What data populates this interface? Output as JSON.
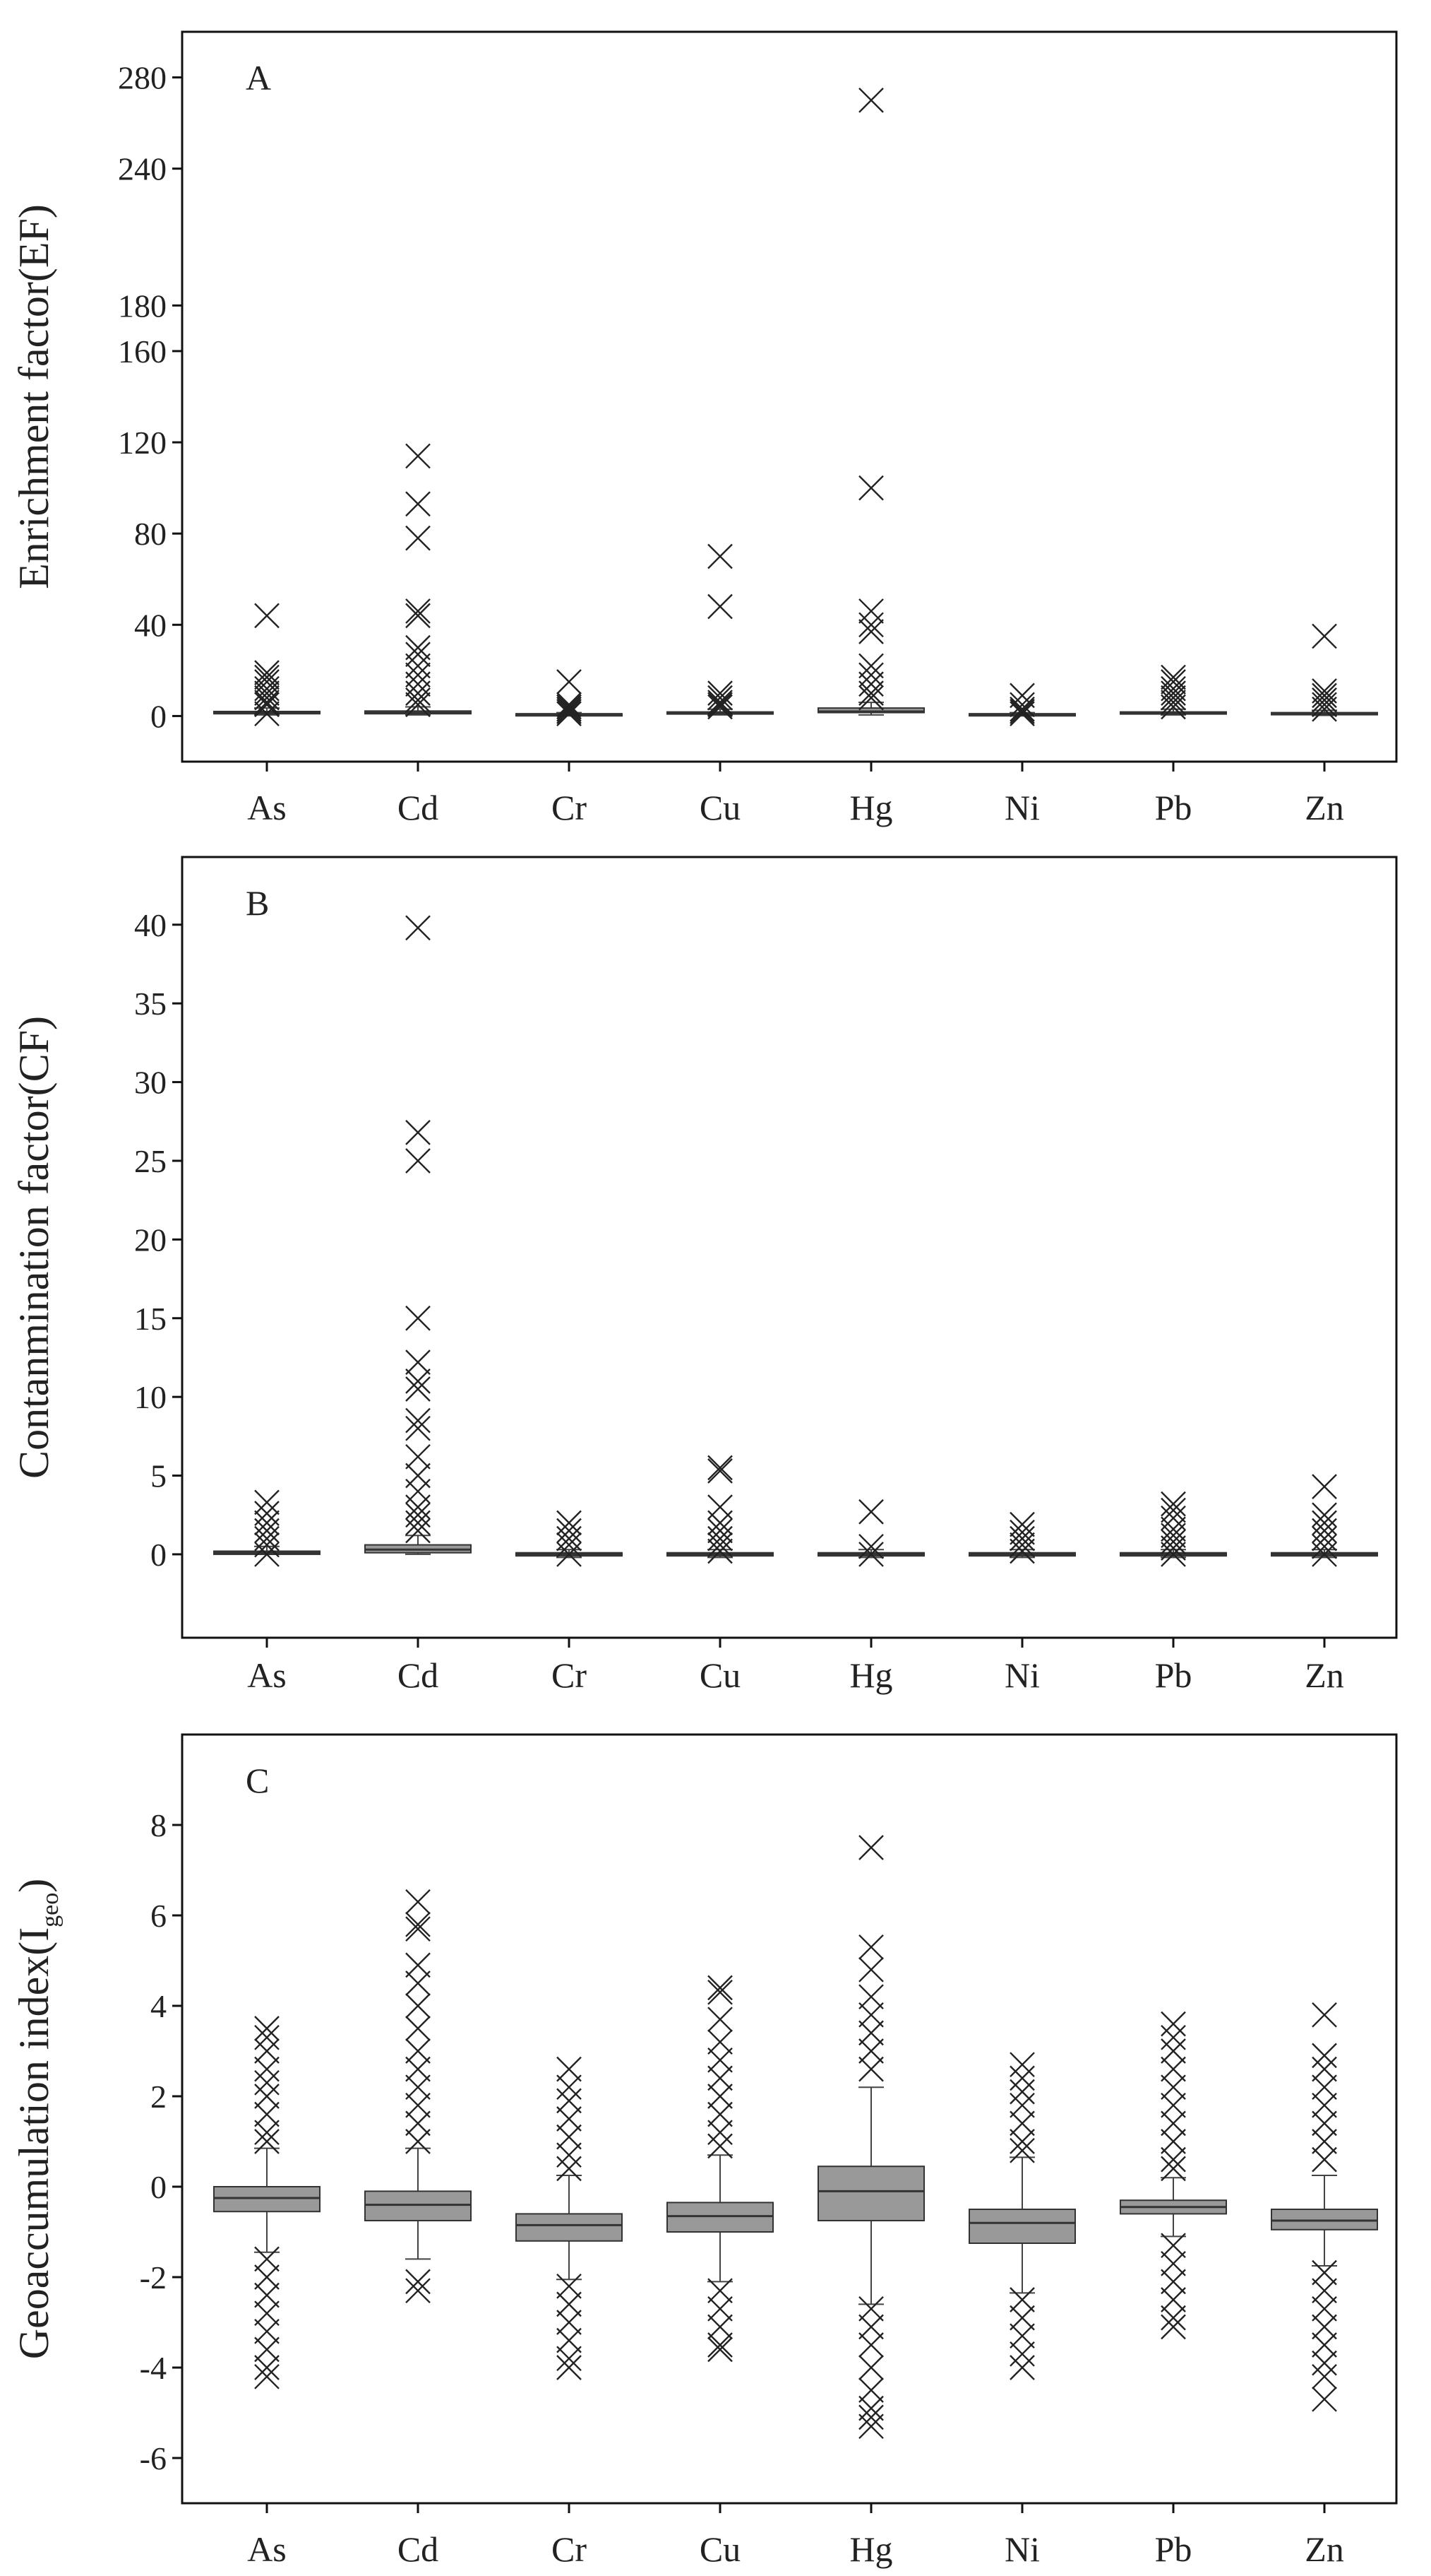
{
  "chart_data": [
    {
      "id": "A",
      "type": "box",
      "panel_label": "A",
      "ylabel": "Enrichment factor(EF)",
      "xlabel": "",
      "ylim": [
        -20,
        300
      ],
      "yticks": [
        0,
        40,
        80,
        120,
        160,
        180,
        240,
        280
      ],
      "ytick_labels": [
        "0",
        "40",
        "80",
        "120",
        "160",
        "180",
        "240",
        "280"
      ],
      "categories": [
        "As",
        "Cd",
        "Cr",
        "Cu",
        "Hg",
        "Ni",
        "Pb",
        "Zn"
      ],
      "boxes": [
        {
          "q1": 1.0,
          "median": 1.5,
          "q3": 2.0,
          "whisker_low": 0.5,
          "whisker_high": 3.5,
          "outliers": [
            44,
            19,
            17,
            15,
            12,
            10,
            8,
            6,
            5,
            1
          ]
        },
        {
          "q1": 1.0,
          "median": 1.5,
          "q3": 2.2,
          "whisker_low": 0.5,
          "whisker_high": 4,
          "outliers": [
            114,
            93,
            78,
            46,
            44,
            30,
            27,
            22,
            18,
            14,
            10,
            7,
            5
          ]
        },
        {
          "q1": 0.5,
          "median": 0.8,
          "q3": 1.0,
          "whisker_low": 0.3,
          "whisker_high": 1.5,
          "outliers": [
            15,
            5,
            4,
            3,
            2,
            1
          ]
        },
        {
          "q1": 1.0,
          "median": 1.3,
          "q3": 1.8,
          "whisker_low": 0.5,
          "whisker_high": 3,
          "outliers": [
            70,
            48,
            10,
            8,
            6,
            5,
            4
          ]
        },
        {
          "q1": 1.5,
          "median": 2.0,
          "q3": 3.5,
          "whisker_low": 0.5,
          "whisker_high": 6,
          "outliers": [
            270,
            100,
            46,
            40,
            37,
            22,
            18,
            14,
            10,
            8
          ]
        },
        {
          "q1": 0.5,
          "median": 0.8,
          "q3": 1.0,
          "whisker_low": 0.3,
          "whisker_high": 1.5,
          "outliers": [
            9,
            5,
            3,
            2,
            1
          ]
        },
        {
          "q1": 1.0,
          "median": 1.3,
          "q3": 1.8,
          "whisker_low": 0.5,
          "whisker_high": 3,
          "outliers": [
            17,
            15,
            12,
            10,
            8,
            6,
            4
          ]
        },
        {
          "q1": 0.8,
          "median": 1.0,
          "q3": 1.5,
          "whisker_low": 0.3,
          "whisker_high": 2.5,
          "outliers": [
            35,
            11,
            9,
            7,
            5,
            3
          ]
        }
      ]
    },
    {
      "id": "B",
      "type": "box",
      "panel_label": "B",
      "ylabel": "Contanmination factor(CF)",
      "xlabel": "",
      "ylim": [
        -5.3,
        44.3
      ],
      "yticks": [
        0,
        5,
        10,
        15,
        20,
        25,
        30,
        35,
        40
      ],
      "ytick_labels": [
        "0",
        "5",
        "10",
        "15",
        "20",
        "25",
        "30",
        "35",
        "40"
      ],
      "categories": [
        "As",
        "Cd",
        "Cr",
        "Cu",
        "Hg",
        "Ni",
        "Pb",
        "Zn"
      ],
      "boxes": [
        {
          "q1": 0.0,
          "median": 0.1,
          "q3": 0.2,
          "whisker_low": 0.0,
          "whisker_high": 0.5,
          "outliers": [
            3.3,
            2.6,
            2.0,
            1.5,
            1.0,
            0.6,
            0.0
          ]
        },
        {
          "q1": 0.1,
          "median": 0.3,
          "q3": 0.6,
          "whisker_low": 0.0,
          "whisker_high": 1.2,
          "outliers": [
            39.8,
            26.8,
            25.0,
            15.0,
            12.2,
            11.0,
            10.5,
            8.5,
            8.0,
            6.2,
            5.0,
            4.0,
            3.0,
            2.5,
            2.0,
            1.5
          ]
        },
        {
          "q1": -0.1,
          "median": 0.0,
          "q3": 0.1,
          "whisker_low": -0.2,
          "whisker_high": 0.3,
          "outliers": [
            2.0,
            1.5,
            1.0,
            0.6,
            0.0
          ]
        },
        {
          "q1": -0.1,
          "median": 0.0,
          "q3": 0.1,
          "whisker_low": -0.2,
          "whisker_high": 0.3,
          "outliers": [
            5.5,
            5.3,
            3.0,
            2.0,
            1.5,
            1.0,
            0.6,
            0.2
          ]
        },
        {
          "q1": -0.1,
          "median": 0.0,
          "q3": 0.1,
          "whisker_low": -0.2,
          "whisker_high": 0.3,
          "outliers": [
            2.7,
            0.5,
            0.0
          ]
        },
        {
          "q1": -0.1,
          "median": 0.0,
          "q3": 0.1,
          "whisker_low": -0.2,
          "whisker_high": 0.3,
          "outliers": [
            1.9,
            1.4,
            1.0,
            0.6,
            0.2
          ]
        },
        {
          "q1": -0.1,
          "median": 0.0,
          "q3": 0.1,
          "whisker_low": -0.2,
          "whisker_high": 0.3,
          "outliers": [
            3.2,
            2.8,
            2.3,
            1.6,
            1.2,
            0.8,
            0.4,
            0.0
          ]
        },
        {
          "q1": -0.1,
          "median": 0.0,
          "q3": 0.1,
          "whisker_low": -0.2,
          "whisker_high": 0.3,
          "outliers": [
            4.3,
            2.5,
            2.0,
            1.5,
            1.0,
            0.5,
            0.0
          ]
        }
      ]
    },
    {
      "id": "C",
      "type": "box",
      "panel_label": "C",
      "ylabel_main": "Geoaccumulation index(I",
      "ylabel_sub": "geo",
      "ylabel_end": ")",
      "xlabel": "",
      "ylim": [
        -7.0,
        10.0
      ],
      "yticks": [
        -6,
        -4,
        -2,
        0,
        2,
        4,
        6,
        8
      ],
      "ytick_labels": [
        "-6",
        "-4",
        "-2",
        "0",
        "2",
        "4",
        "6",
        "8"
      ],
      "categories": [
        "As",
        "Cd",
        "Cr",
        "Cu",
        "Hg",
        "Ni",
        "Pb",
        "Zn"
      ],
      "boxes": [
        {
          "q1": -0.55,
          "median": -0.25,
          "q3": 0.0,
          "whisker_low": -1.45,
          "whisker_high": 0.85,
          "outliers": [
            3.5,
            3.3,
            3.0,
            2.6,
            2.3,
            2.0,
            1.6,
            1.2,
            1.0,
            -1.6,
            -2.0,
            -2.4,
            -2.8,
            -3.2,
            -3.6,
            -4.0,
            -4.2
          ]
        },
        {
          "q1": -0.75,
          "median": -0.4,
          "q3": -0.1,
          "whisker_low": -1.6,
          "whisker_high": 0.85,
          "outliers": [
            6.3,
            5.8,
            5.7,
            4.9,
            4.5,
            4.0,
            3.5,
            3.0,
            2.6,
            2.2,
            1.8,
            1.4,
            1.0,
            -2.1,
            -2.3
          ]
        },
        {
          "q1": -1.2,
          "median": -0.85,
          "q3": -0.6,
          "whisker_low": -2.05,
          "whisker_high": 0.25,
          "outliers": [
            2.6,
            2.2,
            1.9,
            1.5,
            1.1,
            0.7,
            0.4,
            -2.2,
            -2.6,
            -3.0,
            -3.4,
            -3.8,
            -4.0
          ]
        },
        {
          "q1": -1.0,
          "median": -0.65,
          "q3": -0.35,
          "whisker_low": -2.1,
          "whisker_high": 0.7,
          "outliers": [
            4.4,
            4.3,
            3.7,
            3.2,
            2.8,
            2.4,
            2.0,
            1.6,
            1.2,
            0.9,
            -2.3,
            -2.7,
            -3.1,
            -3.5,
            -3.6
          ]
        },
        {
          "q1": -0.75,
          "median": -0.1,
          "q3": 0.45,
          "whisker_low": -2.6,
          "whisker_high": 2.2,
          "outliers": [
            7.5,
            5.3,
            4.8,
            4.2,
            3.8,
            3.4,
            3.0,
            2.6,
            -2.7,
            -3.1,
            -3.5,
            -4.0,
            -4.5,
            -4.9,
            -5.1,
            -5.3
          ]
        },
        {
          "q1": -1.25,
          "median": -0.8,
          "q3": -0.5,
          "whisker_low": -2.35,
          "whisker_high": 0.65,
          "outliers": [
            2.7,
            2.4,
            2.1,
            1.8,
            1.4,
            1.0,
            0.8,
            -2.5,
            -2.9,
            -3.3,
            -3.7,
            -4.0
          ]
        },
        {
          "q1": -0.6,
          "median": -0.45,
          "q3": -0.3,
          "whisker_low": -1.1,
          "whisker_high": 0.2,
          "outliers": [
            3.6,
            3.3,
            3.0,
            2.6,
            2.2,
            1.8,
            1.4,
            1.0,
            0.6,
            0.4,
            -1.3,
            -1.7,
            -2.1,
            -2.5,
            -2.9,
            -3.1
          ]
        },
        {
          "q1": -0.95,
          "median": -0.75,
          "q3": -0.5,
          "whisker_low": -1.75,
          "whisker_high": 0.25,
          "outliers": [
            3.8,
            2.9,
            2.6,
            2.2,
            1.8,
            1.4,
            1.0,
            0.6,
            -1.9,
            -2.3,
            -2.7,
            -3.1,
            -3.5,
            -3.9,
            -4.2,
            -4.7
          ]
        }
      ]
    }
  ]
}
